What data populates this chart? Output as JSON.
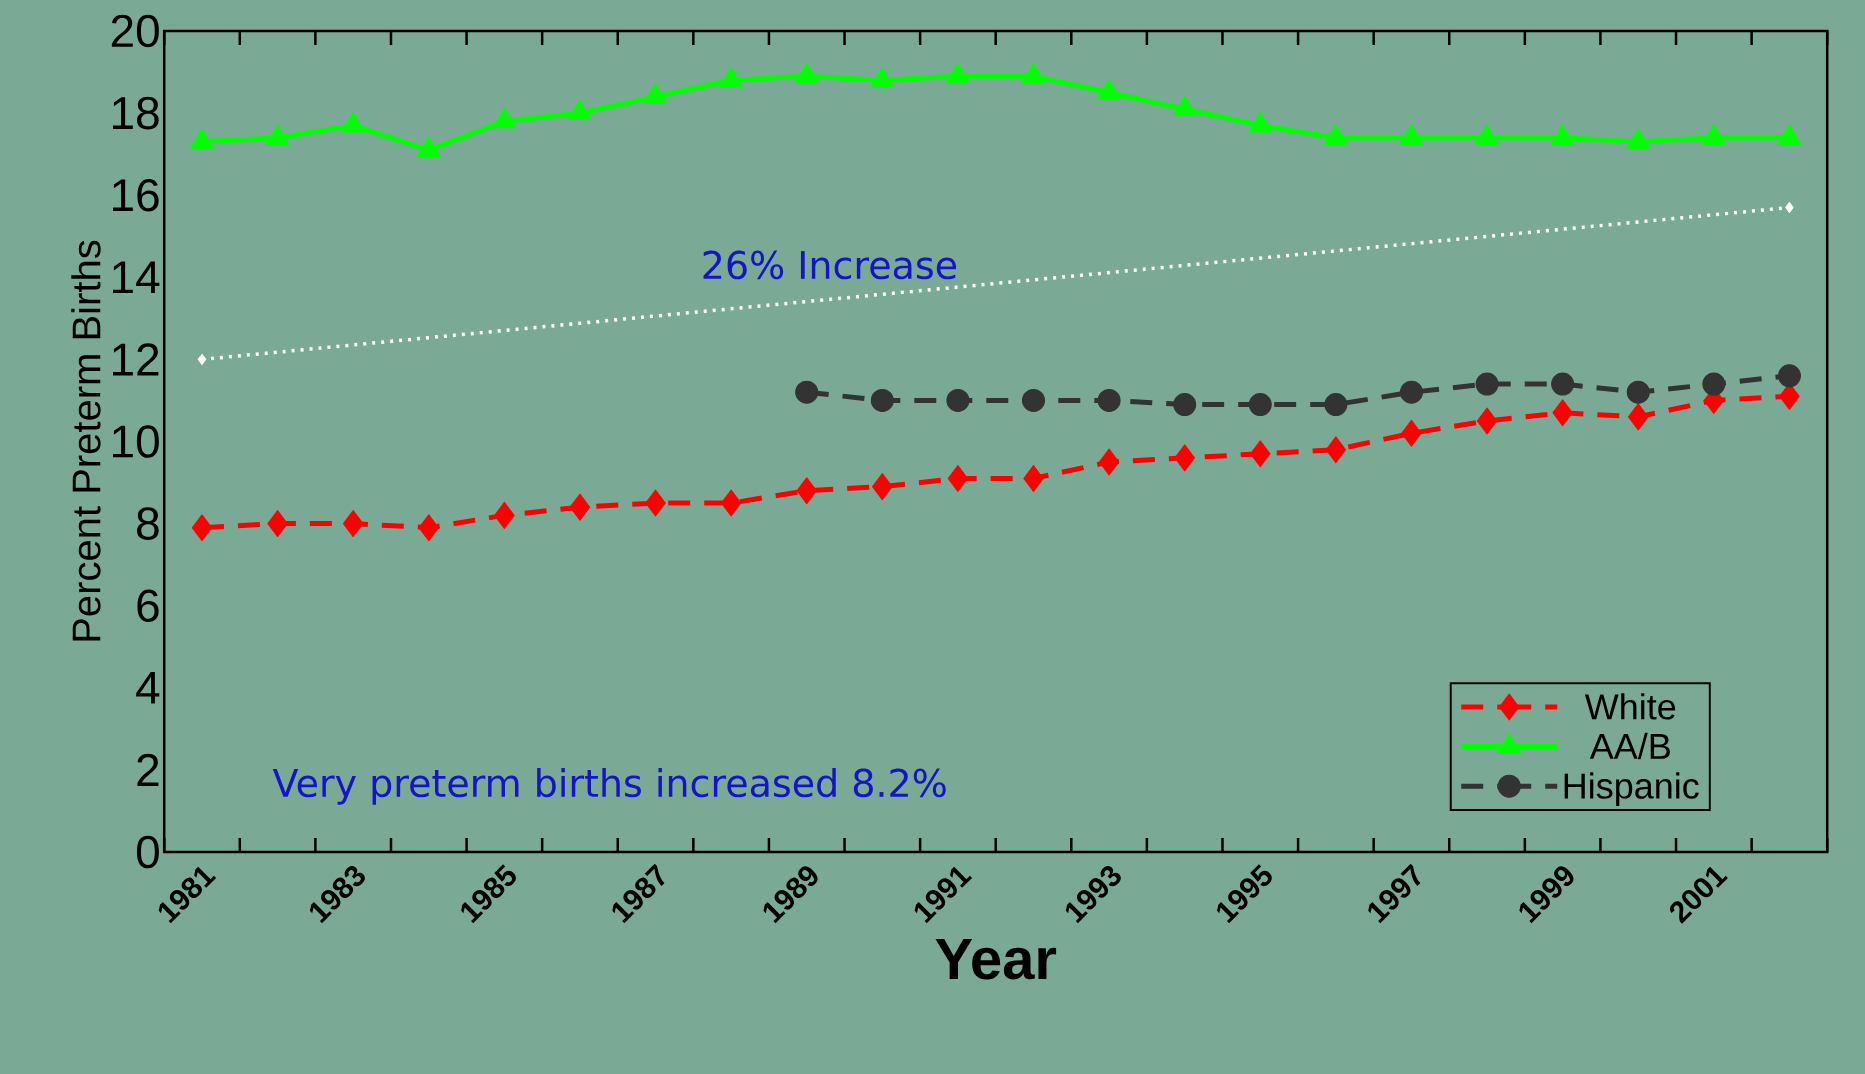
{
  "chart_data": {
    "type": "line",
    "xlabel": "Year",
    "ylabel": "Percent Preterm Births",
    "categories": [
      "1981",
      null,
      "1983",
      null,
      "1985",
      null,
      "1987",
      null,
      "1989",
      null,
      "1991",
      null,
      "1993",
      null,
      "1995",
      null,
      "1997",
      null,
      "1999",
      null,
      "2001",
      null
    ],
    "ylim": [
      0,
      20
    ],
    "yticks": [
      0,
      2,
      4,
      6,
      8,
      10,
      12,
      14,
      16,
      18,
      20
    ],
    "legend": "bottom right",
    "annotations": [
      "26% Increase",
      "Very preterm births increased 8.2%"
    ],
    "series": [
      {
        "name": "White",
        "color": "#ff0000",
        "marker": "diamond",
        "line_style": "dashed",
        "values": [
          7.9,
          8.0,
          8.0,
          7.9,
          8.2,
          8.4,
          8.5,
          8.5,
          8.8,
          8.9,
          9.1,
          9.1,
          9.5,
          9.6,
          9.7,
          9.8,
          10.2,
          10.5,
          10.7,
          10.6,
          11.0,
          11.1
        ]
      },
      {
        "name": "AA/B",
        "color": "#00ff00",
        "marker": "triangle",
        "line_style": "solid",
        "values": [
          17.3,
          17.4,
          17.7,
          17.1,
          17.8,
          18.0,
          18.4,
          18.8,
          18.9,
          18.8,
          18.9,
          18.9,
          18.5,
          18.1,
          17.7,
          17.4,
          17.4,
          17.4,
          17.4,
          17.3,
          17.4,
          17.4
        ]
      },
      {
        "name": "Hispanic",
        "color": "#333333",
        "marker": "circle",
        "line_style": "dashed",
        "values": [
          null,
          null,
          null,
          null,
          null,
          null,
          null,
          null,
          11.2,
          11.0,
          11.0,
          11.0,
          11.0,
          10.9,
          10.9,
          10.9,
          11.2,
          11.4,
          11.4,
          11.2,
          11.4,
          11.6
        ]
      },
      {
        "type": "line",
        "color": "#ffffff",
        "marker": "diamond",
        "line_style": "dotted",
        "values": [
          12.0,
          null,
          null,
          null,
          null,
          null,
          null,
          null,
          null,
          null,
          null,
          null,
          null,
          null,
          null,
          null,
          null,
          null,
          null,
          null,
          null,
          15.7
        ]
      }
    ]
  }
}
